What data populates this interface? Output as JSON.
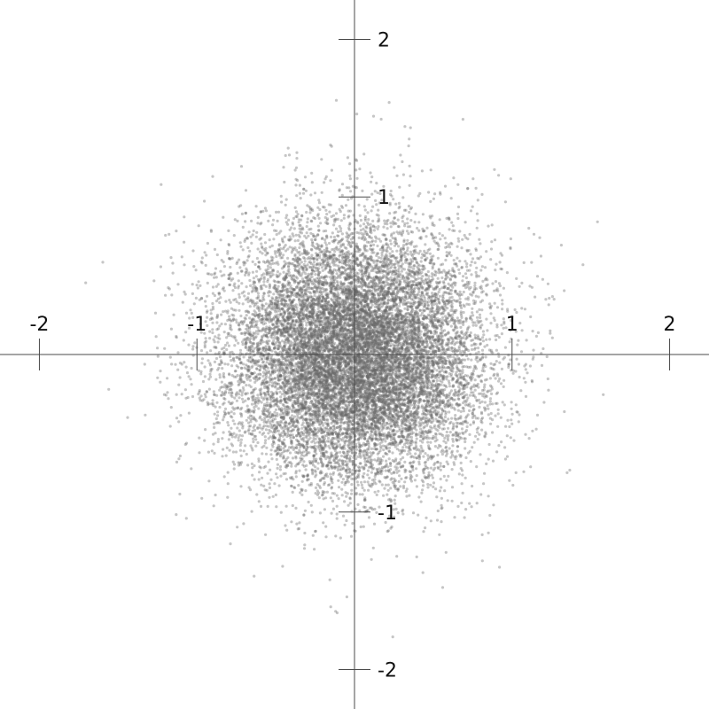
{
  "chart_data": {
    "type": "scatter",
    "title": "",
    "xlabel": "",
    "ylabel": "",
    "xlim": [
      -2.25,
      2.25
    ],
    "ylim": [
      -2.25,
      2.25
    ],
    "grid": false,
    "legend": "none",
    "x_ticks": [
      {
        "value": -2,
        "label": "-2"
      },
      {
        "value": -1,
        "label": "-1"
      },
      {
        "value": 1,
        "label": "1"
      },
      {
        "value": 2,
        "label": "2"
      }
    ],
    "y_ticks": [
      {
        "value": 2,
        "label": "2"
      },
      {
        "value": 1,
        "label": "1"
      },
      {
        "value": -1,
        "label": "-1"
      },
      {
        "value": -2,
        "label": "-2"
      }
    ],
    "point_color": "#6a6a6a",
    "axis_color": "#4a4a4a",
    "distribution": "bivariate normal centered at origin",
    "center": [
      0,
      0
    ],
    "std_dev": 0.4,
    "point_count": 15000,
    "notable_points": [
      {
        "x": 0.22,
        "y": 1.6
      },
      {
        "x": 1.45,
        "y": 0.57
      },
      {
        "x": -1.44,
        "y": -0.4
      },
      {
        "x": -0.12,
        "y": -1.63
      },
      {
        "x": 0.92,
        "y": -1.35
      },
      {
        "x": -0.9,
        "y": 1.13
      }
    ]
  }
}
